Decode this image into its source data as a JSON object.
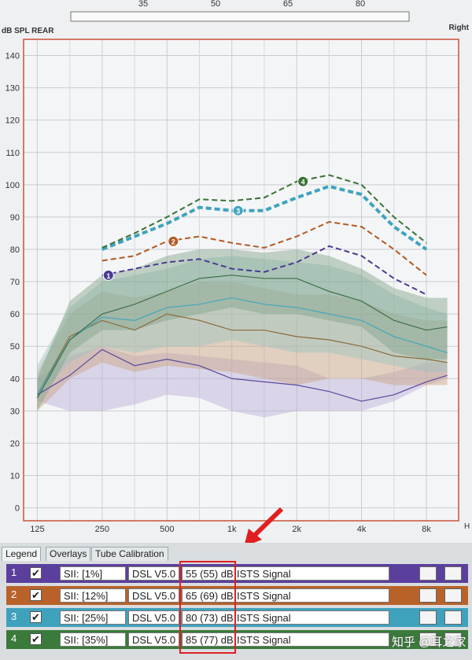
{
  "chart_data": {
    "type": "line",
    "y_label": "dB SPL REAR",
    "side_label": "Right",
    "x_unit": "H",
    "top_scale": [
      "35",
      "50",
      "65",
      "80"
    ],
    "xscale": "log",
    "grid": true,
    "xlim": [
      108,
      11290
    ],
    "ylim": [
      -4,
      145
    ],
    "xticks": [
      125,
      250,
      500,
      {
        "value": 1000,
        "label": "1k"
      },
      {
        "value": 2000,
        "label": "2k"
      },
      {
        "value": 4000,
        "label": "4k"
      },
      {
        "value": 8000,
        "label": "8k"
      }
    ],
    "x_minor_grid": [
      177,
      354,
      707,
      1414,
      2828,
      5657
    ],
    "yticks": [
      0,
      10,
      20,
      30,
      40,
      50,
      60,
      70,
      80,
      90,
      100,
      110,
      120,
      130,
      140
    ],
    "series": [
      {
        "name": "1",
        "color": "#4b3a92",
        "dash": true,
        "x": [
          250,
          354,
          500,
          707,
          1000,
          1414,
          2000,
          2828,
          4000,
          5657,
          8000
        ],
        "values": [
          72,
          74,
          76,
          77,
          74,
          73,
          76,
          81,
          78,
          71,
          66
        ]
      },
      {
        "name": "2",
        "color": "#b15a24",
        "dash": true,
        "x": [
          250,
          354,
          500,
          707,
          1000,
          1414,
          2000,
          2828,
          4000,
          5657,
          8000
        ],
        "values": [
          76.5,
          78,
          82.5,
          84,
          82,
          80.5,
          84,
          88.5,
          87,
          80,
          72
        ]
      },
      {
        "name": "3",
        "color": "#3ea3be",
        "dash": true,
        "x": [
          250,
          354,
          500,
          707,
          1000,
          1414,
          2000,
          2828,
          4000,
          5657,
          8000
        ],
        "values": [
          80,
          84,
          88,
          93,
          92,
          92,
          96,
          99.5,
          97,
          87,
          80
        ]
      },
      {
        "name": "4",
        "color": "#3a7236",
        "dash": true,
        "x": [
          250,
          354,
          500,
          707,
          1000,
          1414,
          2000,
          2828,
          4000,
          5657,
          8000
        ],
        "values": [
          80.5,
          85,
          90,
          95.5,
          95,
          96,
          101,
          103,
          100,
          90,
          82
        ]
      }
    ],
    "measured": [
      {
        "color": "#5a4a9c",
        "band_color": "#b9acd8",
        "x": [
          125,
          177,
          250,
          354,
          500,
          707,
          1000,
          1414,
          2000,
          2828,
          4000,
          5657,
          8000,
          10000
        ],
        "values": [
          35,
          41,
          49,
          44,
          46,
          44,
          40,
          39,
          38,
          36,
          33,
          35,
          39,
          41
        ],
        "lower": [
          33,
          30,
          30,
          32,
          35,
          34,
          30,
          28,
          30,
          30,
          30,
          33,
          38,
          40
        ],
        "upper": [
          40,
          47,
          50,
          47,
          48,
          47,
          46,
          45,
          44,
          40,
          40,
          42,
          45,
          45
        ]
      },
      {
        "color": "#8a6a3a",
        "band_color": "#c9a27f",
        "x": [
          125,
          177,
          250,
          354,
          500,
          707,
          1000,
          1414,
          2000,
          2828,
          4000,
          5657,
          8000,
          10000
        ],
        "values": [
          35,
          53,
          58,
          55,
          60,
          58,
          55,
          55,
          53,
          52,
          50,
          47,
          46,
          45
        ],
        "lower": [
          30,
          40,
          45,
          42,
          44,
          43,
          42,
          40,
          38,
          40,
          40,
          38,
          38,
          38
        ],
        "upper": [
          42,
          60,
          67,
          65,
          67,
          70,
          70,
          68,
          66,
          66,
          64,
          60,
          58,
          58
        ]
      },
      {
        "color": "#44a6bf",
        "band_color": "#9cc3bf",
        "x": [
          125,
          177,
          250,
          354,
          500,
          707,
          1000,
          1414,
          2000,
          2828,
          4000,
          5657,
          8000,
          10000
        ],
        "values": [
          35,
          52,
          59,
          58,
          62,
          63,
          65,
          63,
          62,
          60,
          58,
          53,
          50,
          48
        ],
        "lower": [
          34,
          45,
          50,
          48,
          50,
          50,
          52,
          50,
          48,
          48,
          46,
          44,
          42,
          42
        ],
        "upper": [
          44,
          62,
          70,
          72,
          74,
          77,
          78,
          77,
          76,
          75,
          72,
          66,
          62,
          60
        ]
      },
      {
        "color": "#3e6e48",
        "band_color": "#7fa288",
        "x": [
          125,
          177,
          250,
          354,
          500,
          707,
          1000,
          1414,
          2000,
          2828,
          4000,
          5657,
          8000,
          10000
        ],
        "values": [
          34,
          52,
          60,
          63,
          67,
          71,
          72,
          71,
          71,
          67,
          64,
          58,
          55,
          56
        ],
        "lower": [
          30,
          48,
          55,
          55,
          58,
          60,
          62,
          60,
          60,
          58,
          56,
          48,
          46,
          46
        ],
        "upper": [
          40,
          64,
          72,
          74,
          78,
          80,
          80,
          79,
          80,
          78,
          74,
          68,
          65,
          65
        ]
      }
    ]
  },
  "tabs": [
    "Legend",
    "Overlays",
    "Tube Calibration"
  ],
  "legend_rows": [
    {
      "number": "1",
      "color": "#5b3f9c",
      "sii": "SII: [1%]",
      "rule": "DSL V5.0",
      "level": "55 (55) dB",
      "signal": "ISTS Signal"
    },
    {
      "number": "2",
      "color": "#b8622a",
      "sii": "SII: [12%]",
      "rule": "DSL V5.0",
      "level": "65 (69) dB",
      "signal": "ISTS Signal"
    },
    {
      "number": "3",
      "color": "#3fa2bd",
      "sii": "SII: [25%]",
      "rule": "DSL V5.0",
      "level": "80 (73) dB",
      "signal": "ISTS Signal"
    },
    {
      "number": "4",
      "color": "#3a7a3a",
      "sii": "SII: [35%]",
      "rule": "DSL V5.0",
      "level": "85 (77) dB",
      "signal": "ISTS Signal"
    }
  ],
  "watermark": "知乎 @耳之家"
}
